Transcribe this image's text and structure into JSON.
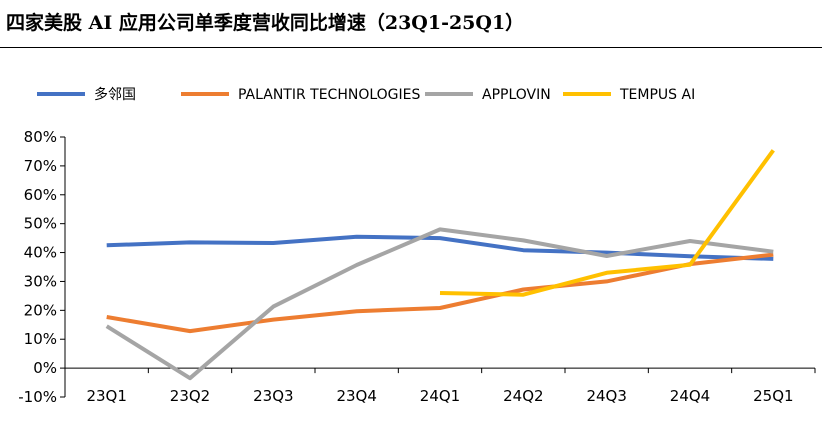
{
  "header": {
    "title": "四家美股 AI 应用公司单季度营收同比增速（23Q1-25Q1）"
  },
  "chart_data": {
    "type": "line",
    "title": "四家美股 AI 应用公司单季度营收同比增速（23Q1-25Q1）",
    "categories": [
      "23Q1",
      "23Q2",
      "23Q3",
      "23Q4",
      "24Q1",
      "24Q2",
      "24Q3",
      "24Q4",
      "25Q1"
    ],
    "ylim": [
      -10,
      80
    ],
    "yticks": [
      -10,
      0,
      10,
      20,
      30,
      40,
      50,
      60,
      70,
      80
    ],
    "ytick_labels": [
      "-10%",
      "0%",
      "10%",
      "20%",
      "30%",
      "40%",
      "50%",
      "60%",
      "70%",
      "80%"
    ],
    "grid": false,
    "legend_position": "top",
    "series": [
      {
        "name": "多邻国",
        "color": "#4472C4",
        "values": [
          42.5,
          43.5,
          43.3,
          45.5,
          45.0,
          40.8,
          40.0,
          38.7,
          37.8
        ]
      },
      {
        "name": "PALANTIR TECHNOLOGIES",
        "color": "#ED7D31",
        "values": [
          17.7,
          12.8,
          16.8,
          19.7,
          20.8,
          27.2,
          30.0,
          36.0,
          39.3
        ]
      },
      {
        "name": "APPLOVIN",
        "color": "#A5A5A5",
        "values": [
          14.5,
          -3.5,
          21.3,
          35.7,
          48.0,
          44.2,
          38.8,
          44.0,
          40.3
        ]
      },
      {
        "name": "TEMPUS AI",
        "color": "#FFC000",
        "values": [
          null,
          null,
          null,
          null,
          26.0,
          25.4,
          33.0,
          35.8,
          75.4
        ]
      }
    ]
  }
}
